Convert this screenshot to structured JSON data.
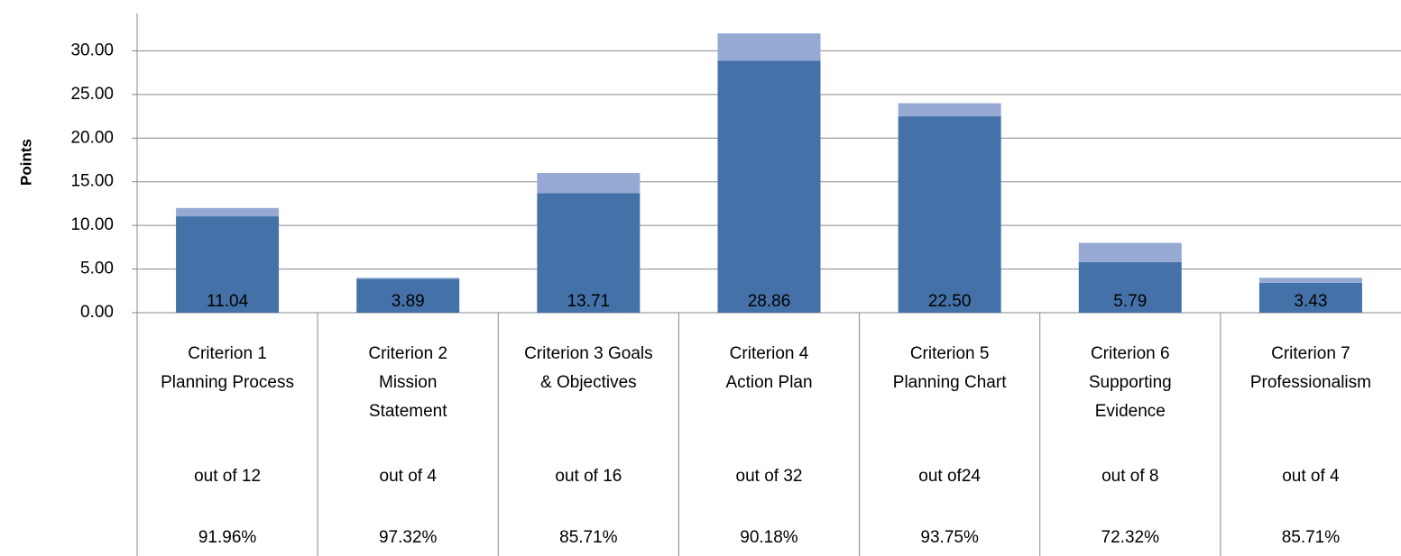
{
  "chart_data": {
    "type": "stacked_bar",
    "y_label": "Points",
    "categories": [
      [
        "Criterion 1",
        "Planning Process"
      ],
      [
        "Criterion 2",
        "Mission",
        "Statement"
      ],
      [
        "Criterion 3 Goals",
        "& Objectives"
      ],
      [
        "Criterion 4",
        "Action Plan"
      ],
      [
        "Criterion 5",
        "Planning Chart"
      ],
      [
        "Criterion 6",
        "Supporting",
        "Evidence"
      ],
      [
        "Criterion 7",
        "Professionalism"
      ]
    ],
    "out_of": [
      "out of 12",
      "out of 4",
      "out of 16",
      "out of 32",
      "out of24",
      "out of 8",
      "out of 4"
    ],
    "percent": [
      "91.96%",
      "97.32%",
      "85.71%",
      "90.18%",
      "93.75%",
      "72.32%",
      "85.71%"
    ],
    "series": [
      {
        "color": "#4472a8",
        "values": [
          11.04,
          3.89,
          13.71,
          28.86,
          22.5,
          5.79,
          3.43
        ],
        "value_labels": [
          "11.04",
          "3.89",
          "13.71",
          "28.86",
          "22.50",
          "5.79",
          "3.43"
        ]
      },
      {
        "color": "#95a9d3",
        "values": [
          0.96,
          0.11,
          2.29,
          3.14,
          1.5,
          2.21,
          0.57
        ]
      }
    ],
    "ylim": [
      0,
      35
    ],
    "yticks": [
      {
        "value": 0,
        "label": "0.00"
      },
      {
        "value": 5,
        "label": "5.00"
      },
      {
        "value": 10,
        "label": "10.00"
      },
      {
        "value": 15,
        "label": "15.00"
      },
      {
        "value": 20,
        "label": "20.00"
      },
      {
        "value": 25,
        "label": "25.00"
      },
      {
        "value": 30,
        "label": "30.00"
      }
    ],
    "grid": true
  }
}
